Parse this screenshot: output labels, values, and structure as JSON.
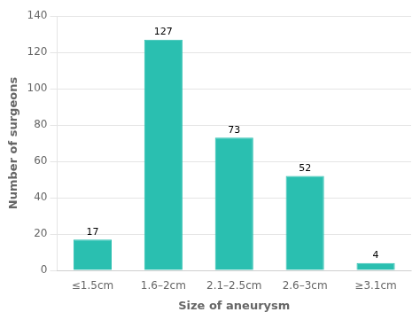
{
  "chart_data": {
    "type": "bar",
    "categories": [
      "≤1.5cm",
      "1.6–2cm",
      "2.1–2.5cm",
      "2.6–3cm",
      "≥3.1cm"
    ],
    "values": [
      17,
      127,
      73,
      52,
      4
    ],
    "color": "#2ABFB0",
    "xlabel": "Size of aneurysm",
    "ylabel": "Number of surgeons",
    "ylim": [
      0,
      140
    ],
    "yticks": [
      0,
      20,
      40,
      60,
      80,
      100,
      120,
      140
    ],
    "grid": true,
    "data_labels": true
  }
}
